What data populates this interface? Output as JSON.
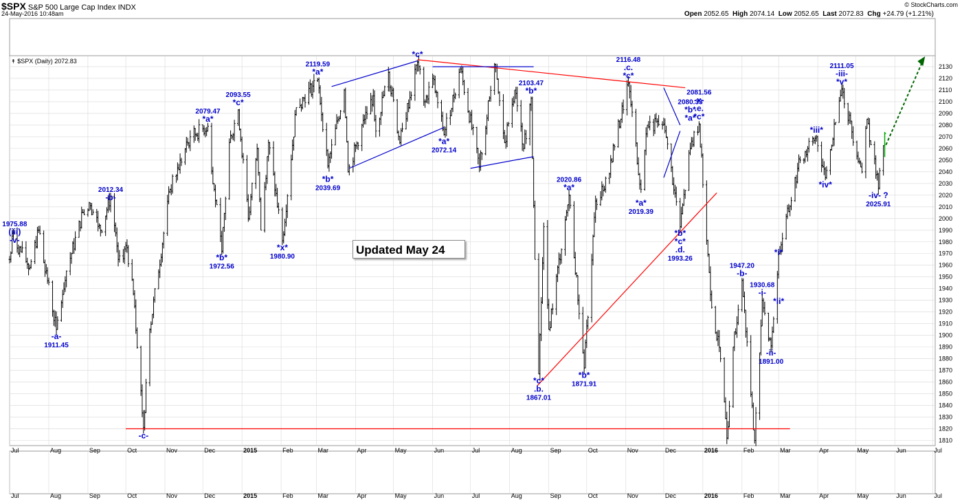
{
  "header": {
    "symbol": "$SPX",
    "name": "S&P 500 Large Cap Index",
    "exchange": "INDX",
    "timestamp": "24-May-2016 10:48am",
    "watermark": "© StockCharts.com",
    "open_label": "Open",
    "open": "2052.65",
    "high_label": "High",
    "high": "2074.14",
    "low_label": "Low",
    "low": "2052.65",
    "last_label": "Last",
    "last": "2072.83",
    "chg_label": "Chg",
    "chg": "+24.79 (+1.21%)"
  },
  "panel_label": "$SPX (Daily) 2072.83",
  "updated_note": "Updated May 24",
  "colors": {
    "bars": "#000000",
    "labels": "#0000cc",
    "trend_red": "#ff0000",
    "trend_blue": "#0000cc",
    "projection": "#006600",
    "last_bar": "#00aa00",
    "grid": "#d8d8d8"
  },
  "chart_data": {
    "type": "ohlc",
    "ylim": [
      1805,
      2140
    ],
    "ytick_step": 10,
    "xlim": [
      "2014-07-01",
      "2016-07-03"
    ],
    "x_ticks": [
      {
        "date": "2014-07-01",
        "label": "Jul"
      },
      {
        "date": "2014-08-01",
        "label": "Aug"
      },
      {
        "date": "2014-09-01",
        "label": "Sep"
      },
      {
        "date": "2014-10-01",
        "label": "Oct"
      },
      {
        "date": "2014-11-01",
        "label": "Nov"
      },
      {
        "date": "2014-12-01",
        "label": "Dec"
      },
      {
        "date": "2015-01-01",
        "label": "2015",
        "bold": true
      },
      {
        "date": "2015-02-01",
        "label": "Feb"
      },
      {
        "date": "2015-03-01",
        "label": "Mar"
      },
      {
        "date": "2015-04-01",
        "label": "Apr"
      },
      {
        "date": "2015-05-01",
        "label": "May"
      },
      {
        "date": "2015-06-01",
        "label": "Jun"
      },
      {
        "date": "2015-07-01",
        "label": "Jul"
      },
      {
        "date": "2015-08-01",
        "label": "Aug"
      },
      {
        "date": "2015-09-01",
        "label": "Sep"
      },
      {
        "date": "2015-10-01",
        "label": "Oct"
      },
      {
        "date": "2015-11-01",
        "label": "Nov"
      },
      {
        "date": "2015-12-01",
        "label": "Dec"
      },
      {
        "date": "2016-01-01",
        "label": "2016",
        "bold": true
      },
      {
        "date": "2016-02-01",
        "label": "Feb"
      },
      {
        "date": "2016-03-01",
        "label": "Mar"
      },
      {
        "date": "2016-04-01",
        "label": "Apr"
      },
      {
        "date": "2016-05-01",
        "label": "May"
      },
      {
        "date": "2016-06-01",
        "label": "Jun"
      },
      {
        "date": "2016-07-01",
        "label": "Jul"
      }
    ],
    "swings": [
      {
        "date": "2014-07-01",
        "value": 1965
      },
      {
        "date": "2014-07-03",
        "value": 1985
      },
      {
        "date": "2014-07-17",
        "value": 1958
      },
      {
        "date": "2014-07-24",
        "value": 1990
      },
      {
        "date": "2014-08-07",
        "value": 1905
      },
      {
        "date": "2014-08-15",
        "value": 1955
      },
      {
        "date": "2014-08-28",
        "value": 2005
      },
      {
        "date": "2014-09-03",
        "value": 2011
      },
      {
        "date": "2014-09-11",
        "value": 1990
      },
      {
        "date": "2014-09-19",
        "value": 2019
      },
      {
        "date": "2014-09-25",
        "value": 1965
      },
      {
        "date": "2014-10-02",
        "value": 1975
      },
      {
        "date": "2014-10-08",
        "value": 1925
      },
      {
        "date": "2014-10-15",
        "value": 1821
      },
      {
        "date": "2014-10-20",
        "value": 1905
      },
      {
        "date": "2014-11-05",
        "value": 2025
      },
      {
        "date": "2014-11-21",
        "value": 2070
      },
      {
        "date": "2014-12-05",
        "value": 2079
      },
      {
        "date": "2014-12-10",
        "value": 2025
      },
      {
        "date": "2014-12-16",
        "value": 1972
      },
      {
        "date": "2014-12-22",
        "value": 2065
      },
      {
        "date": "2014-12-29",
        "value": 2093
      },
      {
        "date": "2015-01-06",
        "value": 2000
      },
      {
        "date": "2015-01-13",
        "value": 2060
      },
      {
        "date": "2015-01-16",
        "value": 1990
      },
      {
        "date": "2015-01-22",
        "value": 2065
      },
      {
        "date": "2015-02-02",
        "value": 1981
      },
      {
        "date": "2015-02-13",
        "value": 2095
      },
      {
        "date": "2015-03-02",
        "value": 2119
      },
      {
        "date": "2015-03-10",
        "value": 2045
      },
      {
        "date": "2015-03-23",
        "value": 2110
      },
      {
        "date": "2015-03-26",
        "value": 2040
      },
      {
        "date": "2015-04-08",
        "value": 2085
      },
      {
        "date": "2015-04-15",
        "value": 2105
      },
      {
        "date": "2015-04-17",
        "value": 2075
      },
      {
        "date": "2015-04-27",
        "value": 2125
      },
      {
        "date": "2015-05-06",
        "value": 2065
      },
      {
        "date": "2015-05-20",
        "value": 2134
      },
      {
        "date": "2015-05-26",
        "value": 2100
      },
      {
        "date": "2015-06-01",
        "value": 2120
      },
      {
        "date": "2015-06-10",
        "value": 2072
      },
      {
        "date": "2015-06-23",
        "value": 2128
      },
      {
        "date": "2015-07-08",
        "value": 2044
      },
      {
        "date": "2015-07-20",
        "value": 2132
      },
      {
        "date": "2015-07-28",
        "value": 2065
      },
      {
        "date": "2015-08-05",
        "value": 2110
      },
      {
        "date": "2015-08-12",
        "value": 2060
      },
      {
        "date": "2015-08-18",
        "value": 2103
      },
      {
        "date": "2015-08-21",
        "value": 1965
      },
      {
        "date": "2015-08-24",
        "value": 1867
      },
      {
        "date": "2015-08-28",
        "value": 1993
      },
      {
        "date": "2015-09-01",
        "value": 1905
      },
      {
        "date": "2015-09-17",
        "value": 2020
      },
      {
        "date": "2015-09-29",
        "value": 1872
      },
      {
        "date": "2015-10-08",
        "value": 2015
      },
      {
        "date": "2015-10-15",
        "value": 2025
      },
      {
        "date": "2015-11-03",
        "value": 2116
      },
      {
        "date": "2015-11-13",
        "value": 2025
      },
      {
        "date": "2015-11-18",
        "value": 2080
      },
      {
        "date": "2015-11-30",
        "value": 2080
      },
      {
        "date": "2015-12-02",
        "value": 2075
      },
      {
        "date": "2015-12-14",
        "value": 1993
      },
      {
        "date": "2015-12-22",
        "value": 2060
      },
      {
        "date": "2015-12-29",
        "value": 2081
      },
      {
        "date": "2016-01-07",
        "value": 1935
      },
      {
        "date": "2016-01-15",
        "value": 1880
      },
      {
        "date": "2016-01-20",
        "value": 1812
      },
      {
        "date": "2016-01-25",
        "value": 1890
      },
      {
        "date": "2016-02-01",
        "value": 1947
      },
      {
        "date": "2016-02-11",
        "value": 1810
      },
      {
        "date": "2016-02-17",
        "value": 1930
      },
      {
        "date": "2016-02-24",
        "value": 1891
      },
      {
        "date": "2016-03-01",
        "value": 1970
      },
      {
        "date": "2016-03-18",
        "value": 2050
      },
      {
        "date": "2016-03-31",
        "value": 2070
      },
      {
        "date": "2016-04-07",
        "value": 2035
      },
      {
        "date": "2016-04-20",
        "value": 2111
      },
      {
        "date": "2016-05-06",
        "value": 2040
      },
      {
        "date": "2016-05-10",
        "value": 2085
      },
      {
        "date": "2016-05-19",
        "value": 2026
      },
      {
        "date": "2016-05-24",
        "value": 2072.83
      }
    ],
    "last_bar": {
      "date": "2016-05-24",
      "low": 2052.65,
      "high": 2074.14,
      "close": 2072.83
    },
    "trendlines": [
      {
        "color": "trend_red",
        "from": {
          "date": "2014-10-01",
          "value": 1820
        },
        "to": {
          "date": "2016-03-10",
          "value": 1820
        }
      },
      {
        "color": "trend_red",
        "from": {
          "date": "2015-05-20",
          "value": 2136
        },
        "to": {
          "date": "2015-12-18",
          "value": 2112
        }
      },
      {
        "color": "trend_red",
        "from": {
          "date": "2015-08-23",
          "value": 1857
        },
        "to": {
          "date": "2016-01-12",
          "value": 2022
        }
      },
      {
        "color": "trend_blue",
        "from": {
          "date": "2015-03-13",
          "value": 2113
        },
        "to": {
          "date": "2015-05-20",
          "value": 2135
        }
      },
      {
        "color": "trend_blue",
        "from": {
          "date": "2015-03-27",
          "value": 2043
        },
        "to": {
          "date": "2015-06-10",
          "value": 2078
        }
      },
      {
        "color": "trend_blue",
        "from": {
          "date": "2015-06-01",
          "value": 2130
        },
        "to": {
          "date": "2015-08-20",
          "value": 2130
        }
      },
      {
        "color": "trend_blue",
        "from": {
          "date": "2015-07-01",
          "value": 2043
        },
        "to": {
          "date": "2015-08-20",
          "value": 2053
        }
      },
      {
        "color": "trend_blue",
        "from": {
          "date": "2015-12-01",
          "value": 2112
        },
        "to": {
          "date": "2015-12-14",
          "value": 2080
        }
      },
      {
        "color": "trend_blue",
        "from": {
          "date": "2015-12-01",
          "value": 2035
        },
        "to": {
          "date": "2015-12-14",
          "value": 2075
        }
      }
    ],
    "projection": {
      "from": {
        "date": "2016-05-25",
        "value": 2063
      },
      "to": {
        "date": "2016-06-25",
        "value": 2140
      }
    },
    "annotations": [
      {
        "date": "2014-07-05",
        "value": 1975.88,
        "lines": [
          "1975.88",
          "(iii)",
          "-v-"
        ]
      },
      {
        "date": "2014-08-07",
        "value": 1905,
        "below": true,
        "lines": [
          "-a-",
          "1911.45"
        ]
      },
      {
        "date": "2014-09-19",
        "value": 2012.34,
        "lines": [
          "2012.34",
          "-b-"
        ]
      },
      {
        "date": "2014-10-15",
        "value": 1820,
        "below": true,
        "lines": [
          "-c-"
        ]
      },
      {
        "date": "2014-12-05",
        "value": 2079.47,
        "lines": [
          "2079.47",
          "*a*"
        ]
      },
      {
        "date": "2014-12-16",
        "value": 1972.56,
        "below": true,
        "lines": [
          "*b*",
          "1972.56"
        ]
      },
      {
        "date": "2014-12-29",
        "value": 2093.55,
        "lines": [
          "2093.55",
          "*c*"
        ]
      },
      {
        "date": "2015-02-02",
        "value": 1980.9,
        "below": true,
        "lines": [
          "*x*",
          "1980.90"
        ]
      },
      {
        "date": "2015-03-02",
        "value": 2119.59,
        "lines": [
          "2119.59",
          "*a*"
        ]
      },
      {
        "date": "2015-03-10",
        "value": 2039.69,
        "below": true,
        "lines": [
          "*b*",
          "2039.69"
        ]
      },
      {
        "date": "2015-05-20",
        "value": 2134.72,
        "lines": [
          "*c*"
        ]
      },
      {
        "date": "2015-06-10",
        "value": 2072.14,
        "below": true,
        "lines": [
          "*a*",
          "2072.14"
        ]
      },
      {
        "date": "2015-08-18",
        "value": 2103.47,
        "lines": [
          "2103.47",
          "*b*"
        ]
      },
      {
        "date": "2015-08-24",
        "value": 1867.01,
        "below": true,
        "lines": [
          "*c*",
          ".b.",
          "1867.01"
        ]
      },
      {
        "date": "2015-09-17",
        "value": 2020.86,
        "lines": [
          "2020.86",
          "*a*"
        ]
      },
      {
        "date": "2015-09-29",
        "value": 1871.91,
        "below": true,
        "lines": [
          "*b*",
          "1871.91"
        ]
      },
      {
        "date": "2015-11-03",
        "value": 2116.48,
        "lines": [
          "2116.48",
          ".c.",
          "*c*"
        ]
      },
      {
        "date": "2015-11-13",
        "value": 2019.39,
        "below": true,
        "lines": [
          "*a*",
          "2019.39"
        ]
      },
      {
        "date": "2015-12-22",
        "value": 2080.33,
        "lines": [
          "2080.33",
          "*b*",
          "*a*"
        ]
      },
      {
        "date": "2015-12-14",
        "value": 1993.26,
        "below": true,
        "lines": [
          "*b*",
          "*c*",
          ".d.",
          "1993.26"
        ]
      },
      {
        "date": "2015-12-29",
        "value": 2081.56,
        "lines": [
          "2081.56",
          "-x-",
          ".e.",
          "*c*"
        ]
      },
      {
        "date": "2016-02-01",
        "value": 1947.2,
        "lines": [
          "1947.20",
          "-b-"
        ]
      },
      {
        "date": "2016-02-17",
        "value": 1930.68,
        "lines": [
          "1930.68",
          "-i-"
        ]
      },
      {
        "date": "2016-02-24",
        "value": 1891.0,
        "below": true,
        "lines": [
          "-ii-",
          "1891.00"
        ]
      },
      {
        "date": "2016-03-01",
        "value": 1965,
        "lines": [
          "*i*"
        ]
      },
      {
        "date": "2016-03-01",
        "value": 1935,
        "below": true,
        "lines": [
          "*ii*"
        ]
      },
      {
        "date": "2016-03-31",
        "value": 2070,
        "lines": [
          "*iii*"
        ]
      },
      {
        "date": "2016-04-07",
        "value": 2035,
        "below": true,
        "lines": [
          "*iv*"
        ]
      },
      {
        "date": "2016-04-20",
        "value": 2111.05,
        "lines": [
          "2111.05",
          "-iii-",
          "*v*"
        ]
      },
      {
        "date": "2016-05-19",
        "value": 2025.91,
        "below": true,
        "lines": [
          "-iv- ?",
          "2025.91"
        ]
      }
    ]
  }
}
